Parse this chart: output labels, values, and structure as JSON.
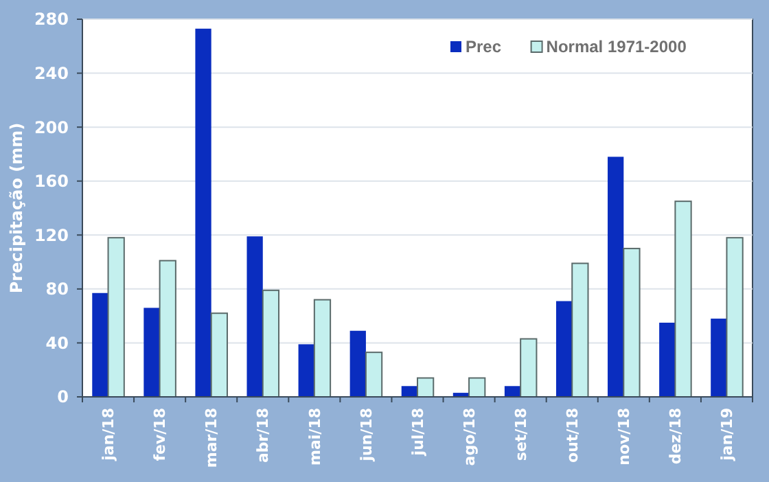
{
  "chart_data": {
    "type": "bar",
    "ylabel": "Precipitação (mm)",
    "categories": [
      "jan/18",
      "fev/18",
      "mar/18",
      "abr/18",
      "mai/18",
      "jun/18",
      "jul/18",
      "ago/18",
      "set/18",
      "out/18",
      "nov/18",
      "dez/18",
      "jan/19"
    ],
    "series": [
      {
        "name": "Prec",
        "color": "#0a2dbf",
        "values": [
          77,
          66,
          273,
          119,
          39,
          49,
          8,
          3,
          8,
          71,
          178,
          55,
          58
        ]
      },
      {
        "name": "Normal 1971-2000",
        "color": "#c4f0ee",
        "values": [
          118,
          101,
          62,
          79,
          72,
          33,
          14,
          14,
          43,
          99,
          110,
          145,
          118
        ]
      }
    ],
    "ylim": [
      0,
      280
    ],
    "yticks": [
      0,
      40,
      80,
      120,
      160,
      200,
      240,
      280
    ],
    "grid": "y",
    "legend": "top right"
  }
}
